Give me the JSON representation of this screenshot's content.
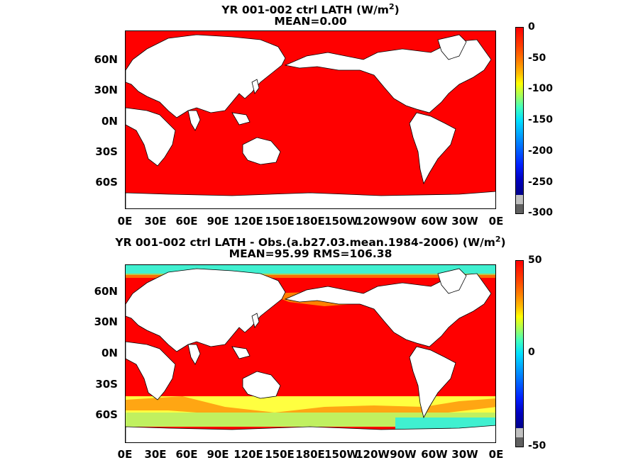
{
  "panels": [
    {
      "title_line1": "YR 001-002 ctrl  LATH (W/m",
      "title_sup": "2",
      "title_end": ")",
      "title_line2": "MEAN=0.00",
      "colorbar_labels": [
        "0",
        "-50",
        "-100",
        "-150",
        "-200",
        "-250",
        "-300"
      ]
    },
    {
      "title_line1": "YR 001-002 ctrl LATH - Obs.(a.b27.03.mean.1984-2006) (W/m",
      "title_sup": "2",
      "title_end": ")",
      "title_line2": "MEAN=95.99 RMS=106.38",
      "colorbar_labels": [
        "50",
        "0",
        "-50"
      ]
    }
  ],
  "y_ticks": [
    "60N",
    "30N",
    "0N",
    "30S",
    "60S"
  ],
  "x_ticks": [
    "0E",
    "30E",
    "60E",
    "90E",
    "120E",
    "150E",
    "180E",
    "150W",
    "120W",
    "90W",
    "60W",
    "30W",
    "0E"
  ],
  "colors": {
    "ocean_red": "#ff0000",
    "land": "#ffffff",
    "coast": "#000000",
    "cyan": "#40f0d0",
    "yellow_green": "#c0f060",
    "orange": "#ff8000"
  }
}
